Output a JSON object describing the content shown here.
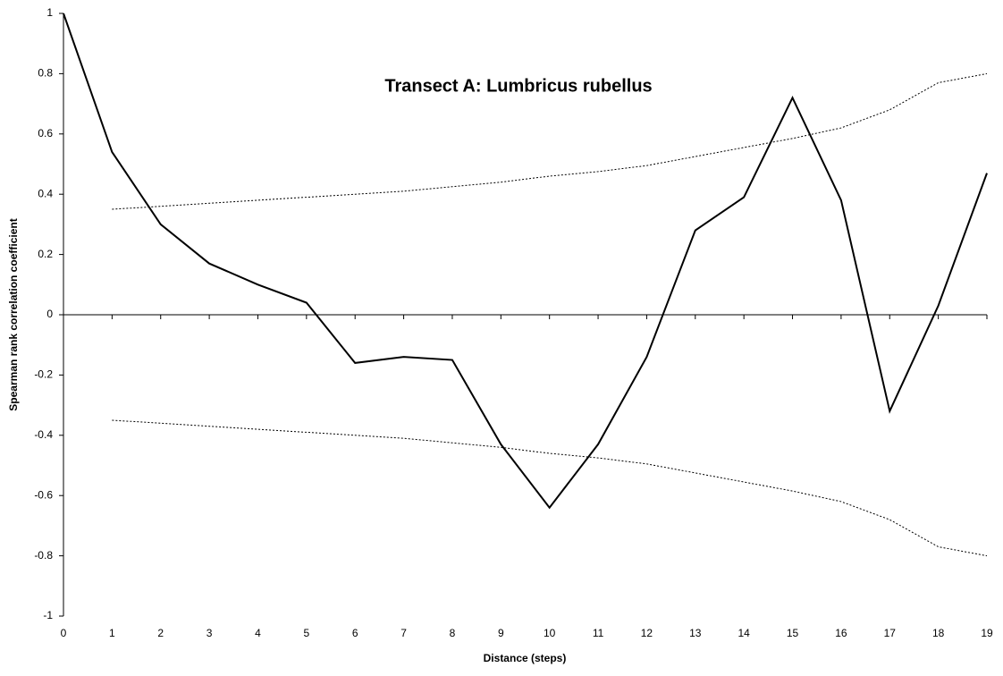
{
  "chart_data": {
    "type": "line",
    "title": "Transect A: Lumbricus rubellus",
    "x_label": "Distance (steps)",
    "y_label": "Spearman rank correlation coefficient",
    "x": [
      0,
      1,
      2,
      3,
      4,
      5,
      6,
      7,
      8,
      9,
      10,
      11,
      12,
      13,
      14,
      15,
      16,
      17,
      18,
      19
    ],
    "series": [
      {
        "color": "#000000",
        "style": "solid",
        "values": [
          1,
          0.54,
          0.3,
          0.17,
          0.1,
          0.04,
          -0.16,
          -0.14,
          -0.15,
          -0.43,
          -0.64,
          -0.43,
          -0.14,
          0.28,
          0.39,
          0.72,
          0.38,
          -0.32,
          0.03,
          0.47
        ]
      },
      {
        "color": "#000000",
        "style": "dotted",
        "values": [
          null,
          0.35,
          0.36,
          0.37,
          0.38,
          0.39,
          0.4,
          0.41,
          0.425,
          0.44,
          0.46,
          0.475,
          0.495,
          0.525,
          0.555,
          0.585,
          0.62,
          0.68,
          0.77,
          0.8
        ]
      },
      {
        "color": "#000000",
        "style": "dotted",
        "values": [
          null,
          -0.35,
          -0.36,
          -0.37,
          -0.38,
          -0.39,
          -0.4,
          -0.41,
          -0.425,
          -0.44,
          -0.46,
          -0.475,
          -0.495,
          -0.525,
          -0.555,
          -0.585,
          -0.62,
          -0.68,
          -0.77,
          -0.8
        ]
      }
    ],
    "xlim": [
      0,
      19
    ],
    "xticks": [
      0,
      1,
      2,
      3,
      4,
      5,
      6,
      7,
      8,
      9,
      10,
      11,
      12,
      13,
      14,
      15,
      16,
      17,
      18,
      19
    ],
    "ylim": [
      -1,
      1
    ],
    "yticks": [
      -1,
      -0.8,
      -0.6,
      -0.4,
      -0.2,
      0,
      0.2,
      0.4,
      0.6,
      0.8,
      1
    ]
  }
}
